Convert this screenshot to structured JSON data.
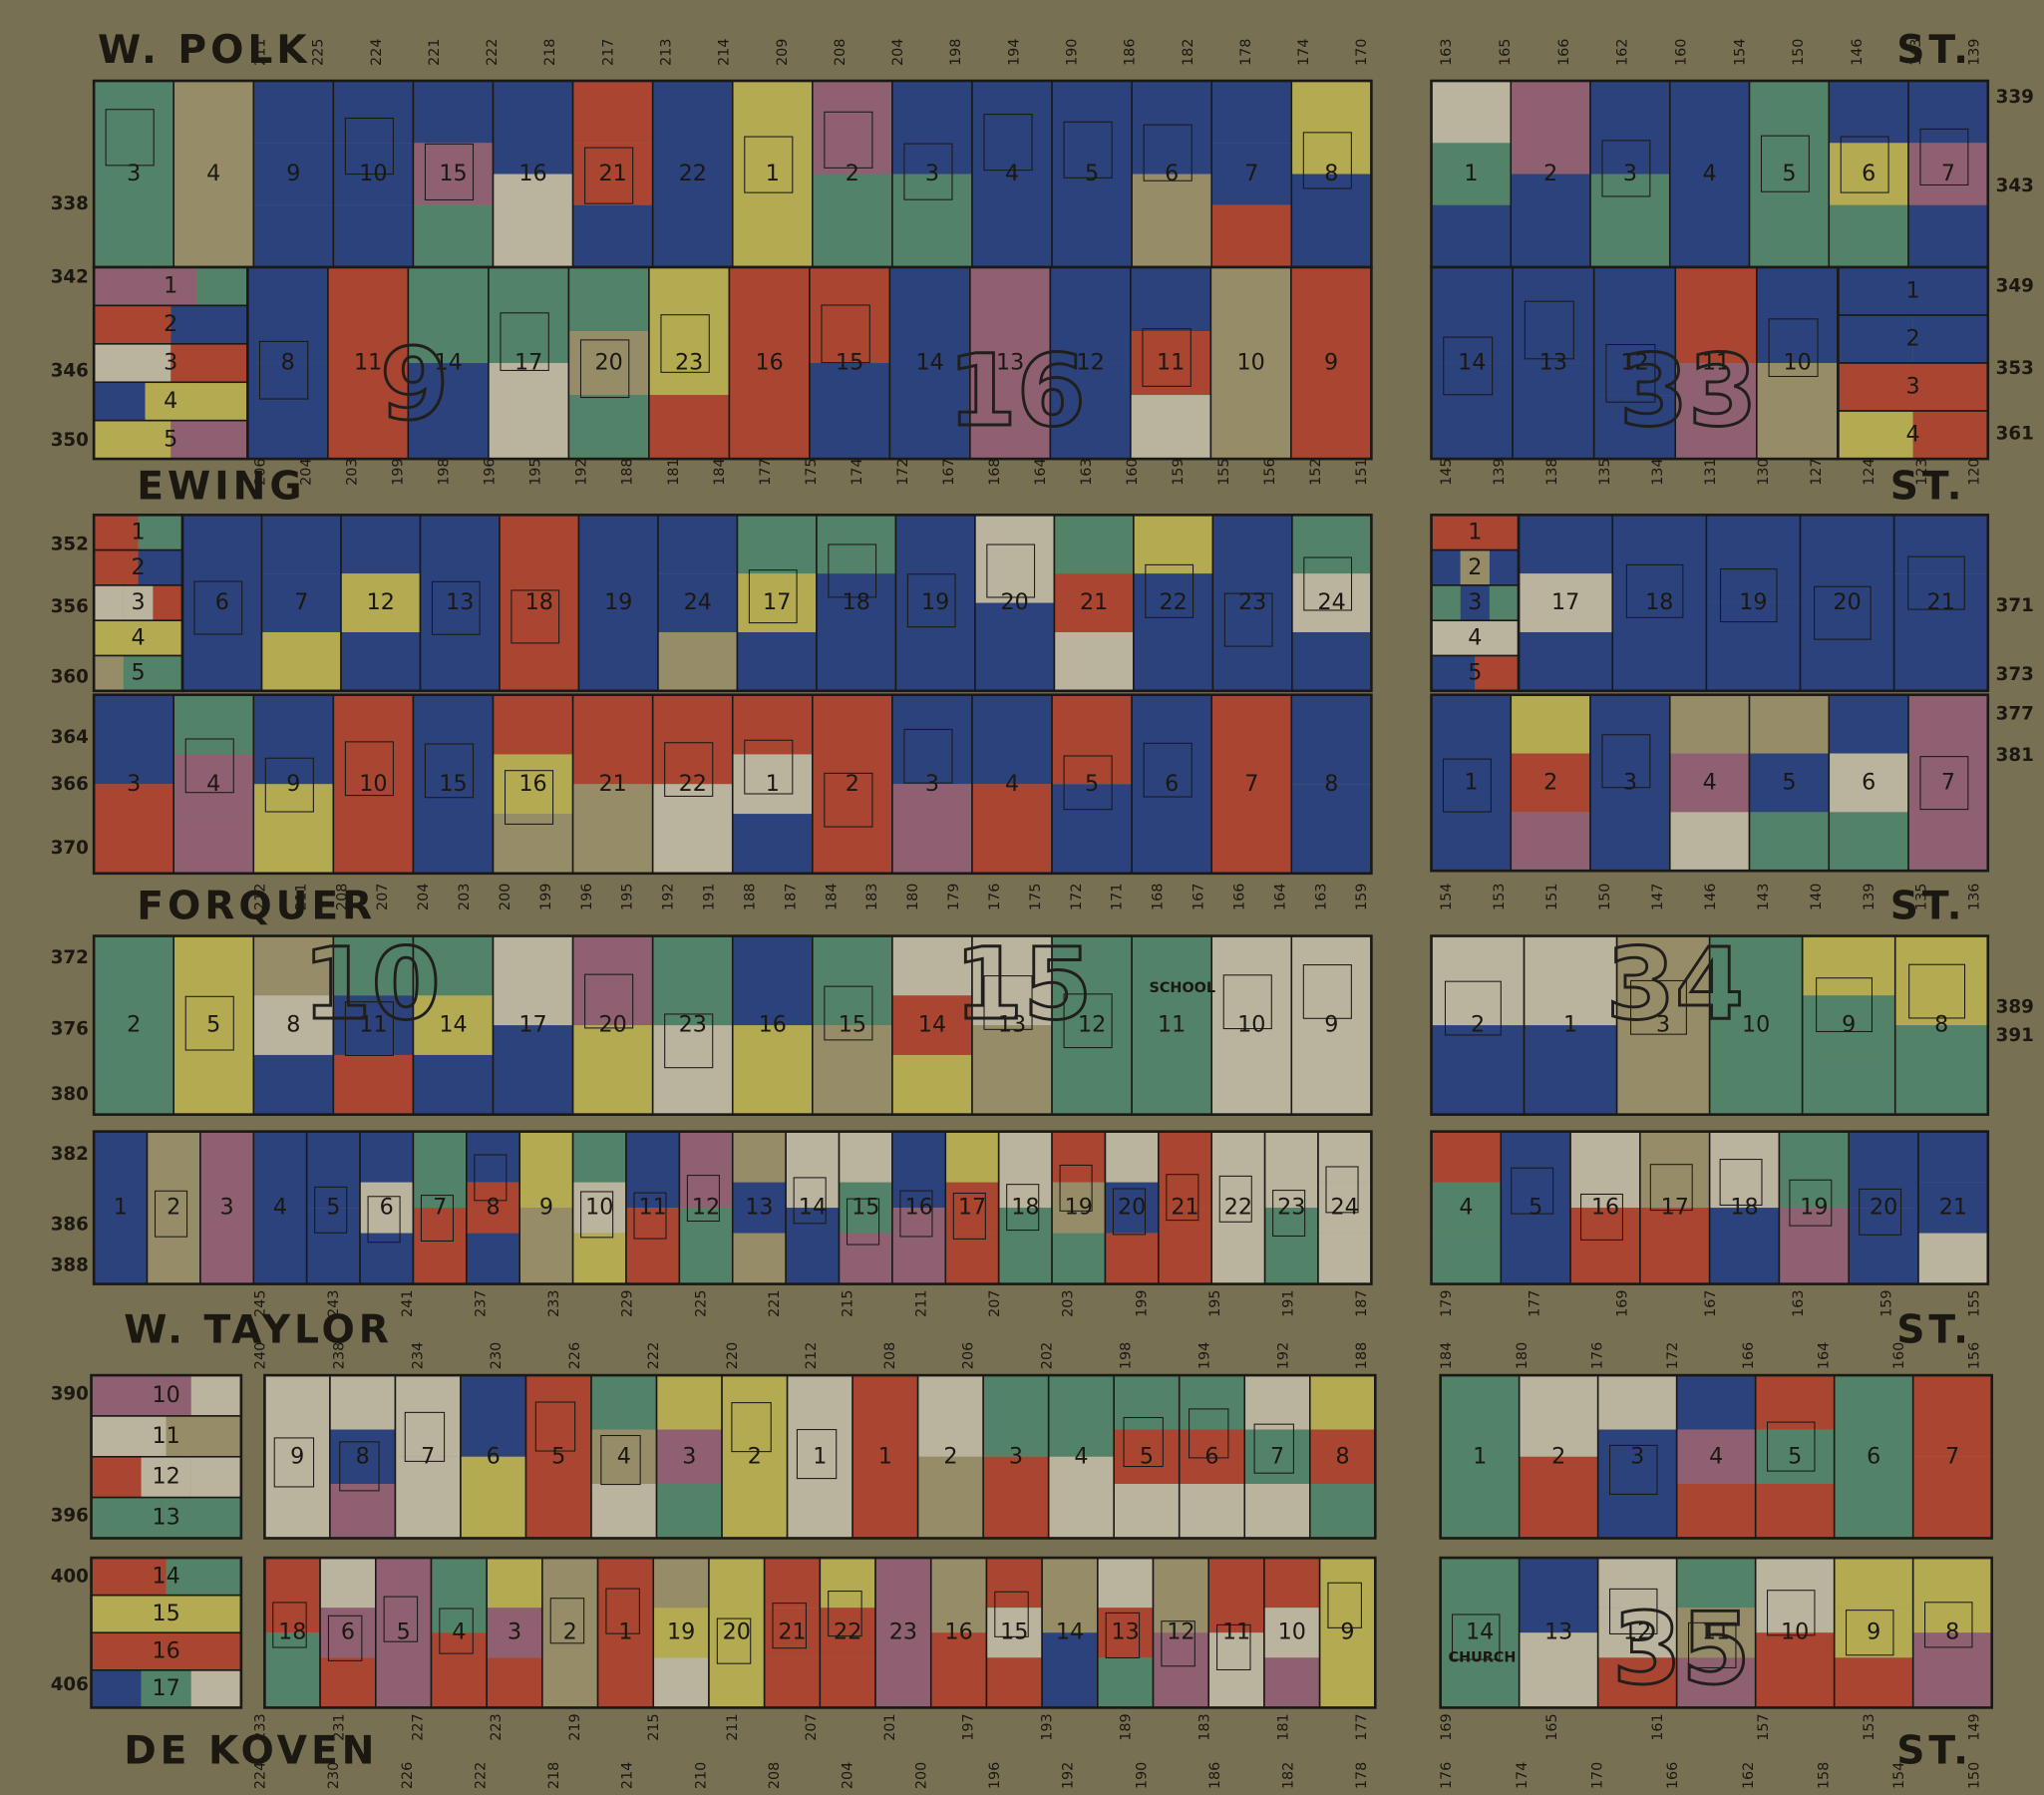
{
  "streets": [
    {
      "name": "W. POLK",
      "suffix": "ST."
    },
    {
      "name": "EWING",
      "suffix": "ST."
    },
    {
      "name": "FORQUER",
      "suffix": "ST."
    },
    {
      "name": "W. TAYLOR",
      "suffix": "ST."
    },
    {
      "name": "DE KOVEN",
      "suffix": "ST."
    }
  ],
  "block_numbers": [
    "9",
    "16",
    "33",
    "10",
    "15",
    "34",
    "35"
  ],
  "labels": [
    "SCHOOL",
    "CHURCH"
  ],
  "strips": [
    {
      "lots": [
        "3",
        "4",
        "9",
        "10",
        "15",
        "16",
        "21",
        "22",
        "1",
        "2",
        "3",
        "4",
        "5",
        "6",
        "7",
        "8"
      ]
    },
    {
      "lots": [
        "1",
        "2",
        "3",
        "4",
        "5"
      ]
    },
    {
      "lots": [
        "8",
        "11",
        "14",
        "17",
        "20",
        "23",
        "16",
        "15",
        "14",
        "13",
        "12",
        "11",
        "10",
        "9"
      ]
    },
    {
      "lots": [
        "1",
        "2",
        "3",
        "4",
        "5",
        "6",
        "7"
      ]
    },
    {
      "lots": [
        "14",
        "13",
        "12",
        "11",
        "10"
      ]
    },
    {
      "lots": [
        "1",
        "2",
        "3",
        "4"
      ]
    },
    {
      "lots": [
        "1",
        "2",
        "3",
        "4",
        "5"
      ]
    },
    {
      "lots": [
        "6",
        "7",
        "12",
        "13",
        "18",
        "19",
        "24",
        "17",
        "18",
        "19",
        "20",
        "21",
        "22",
        "23",
        "24"
      ]
    },
    {
      "lots": [
        "3",
        "4",
        "9",
        "10",
        "15",
        "16",
        "21",
        "22",
        "1",
        "2",
        "3",
        "4",
        "5",
        "6",
        "7",
        "8"
      ]
    },
    {
      "lots": [
        "1",
        "2",
        "3",
        "4",
        "5"
      ]
    },
    {
      "lots": [
        "17",
        "18",
        "19",
        "20",
        "21"
      ]
    },
    {
      "lots": [
        "1",
        "2",
        "3",
        "4",
        "5",
        "6",
        "7"
      ]
    },
    {
      "lots": [
        "2",
        "5",
        "8",
        "11",
        "14",
        "17",
        "20",
        "23",
        "16",
        "15",
        "14",
        "13",
        "12",
        "11",
        "10",
        "9"
      ]
    },
    {
      "lots": [
        "2",
        "1",
        "3",
        "10",
        "9",
        "8"
      ]
    },
    {
      "lots": [
        "1",
        "2",
        "3",
        "4",
        "5",
        "6",
        "7",
        "8",
        "9",
        "10",
        "11",
        "12",
        "13",
        "14",
        "15",
        "16",
        "17",
        "18",
        "19",
        "20",
        "21",
        "22",
        "23",
        "24"
      ]
    },
    {
      "lots": [
        "4",
        "5",
        "16",
        "17",
        "18",
        "19",
        "20",
        "21"
      ]
    },
    {
      "lots": [
        "10",
        "11",
        "12",
        "13"
      ]
    },
    {
      "lots": [
        "9",
        "8",
        "7",
        "6",
        "5",
        "4",
        "3",
        "2",
        "1",
        "1",
        "2",
        "3",
        "4",
        "5",
        "6",
        "7",
        "8"
      ]
    },
    {
      "lots": [
        "1",
        "2",
        "3",
        "4",
        "5",
        "6",
        "7"
      ]
    },
    {
      "lots": [
        "14",
        "15",
        "16",
        "17"
      ]
    },
    {
      "lots": [
        "18",
        "6",
        "5",
        "4",
        "3",
        "2",
        "1",
        "19",
        "20",
        "21",
        "22",
        "23",
        "16",
        "15",
        "14",
        "13",
        "12",
        "11",
        "10",
        "9"
      ]
    },
    {
      "lots": [
        "14",
        "13",
        "12",
        "11",
        "10",
        "9",
        "8"
      ]
    }
  ],
  "house_numbers": [
    {
      "left": [
        "211",
        "225",
        "224",
        "221",
        "222",
        "218",
        "217",
        "213",
        "214",
        "209",
        "208",
        "204",
        "198",
        "194",
        "190",
        "186",
        "182",
        "178",
        "174",
        "170"
      ],
      "right": [
        "163",
        "165",
        "166",
        "162",
        "160",
        "154",
        "150",
        "146",
        "143",
        "139"
      ]
    },
    {
      "left": [
        "206",
        "204",
        "203",
        "199",
        "198",
        "196",
        "195",
        "192",
        "188",
        "181",
        "184",
        "177",
        "175",
        "174",
        "172",
        "167",
        "168",
        "164",
        "163",
        "160",
        "159",
        "155",
        "156",
        "152",
        "151"
      ],
      "right": [
        "145",
        "139",
        "138",
        "135",
        "134",
        "131",
        "130",
        "127",
        "124",
        "123",
        "120"
      ]
    },
    {
      "left": [
        "212",
        "211",
        "208",
        "207",
        "204",
        "203",
        "200",
        "199",
        "196",
        "195",
        "192",
        "191",
        "188",
        "187",
        "184",
        "183",
        "180",
        "179",
        "176",
        "175",
        "172",
        "171",
        "168",
        "167",
        "166",
        "164",
        "163",
        "159"
      ],
      "right": [
        "154",
        "153",
        "151",
        "150",
        "147",
        "146",
        "143",
        "140",
        "139",
        "135",
        "136"
      ]
    },
    {
      "left": [
        "245",
        "243",
        "241",
        "237",
        "233",
        "229",
        "225",
        "221",
        "215",
        "211",
        "207",
        "203",
        "199",
        "195",
        "191",
        "187"
      ],
      "right": [
        "179",
        "177",
        "169",
        "167",
        "163",
        "159",
        "155"
      ]
    },
    {
      "left": [
        "240",
        "238",
        "234",
        "230",
        "226",
        "222",
        "220",
        "212",
        "208",
        "206",
        "202",
        "198",
        "194",
        "192",
        "188"
      ],
      "right": [
        "184",
        "180",
        "176",
        "172",
        "166",
        "164",
        "160",
        "156"
      ]
    },
    {
      "left": [
        "233",
        "231",
        "227",
        "223",
        "219",
        "215",
        "211",
        "207",
        "201",
        "197",
        "193",
        "189",
        "183",
        "181",
        "177"
      ],
      "right": [
        "169",
        "165",
        "161",
        "157",
        "153",
        "149"
      ]
    },
    {
      "left": [
        "224",
        "230",
        "226",
        "222",
        "218",
        "214",
        "210",
        "208",
        "204",
        "200",
        "196",
        "192",
        "190",
        "186",
        "182",
        "178"
      ],
      "right": [
        "176",
        "174",
        "170",
        "166",
        "162",
        "158",
        "154",
        "150"
      ]
    }
  ],
  "side_numbers": {
    "left": [
      "338",
      "342",
      "346",
      "350",
      "352",
      "356",
      "360",
      "364",
      "366",
      "370",
      "372",
      "376",
      "380",
      "382",
      "386",
      "388",
      "390",
      "396",
      "400",
      "406"
    ],
    "right": [
      "339",
      "343",
      "349",
      "353",
      "361",
      "371",
      "373",
      "377",
      "381",
      "389",
      "391"
    ]
  }
}
